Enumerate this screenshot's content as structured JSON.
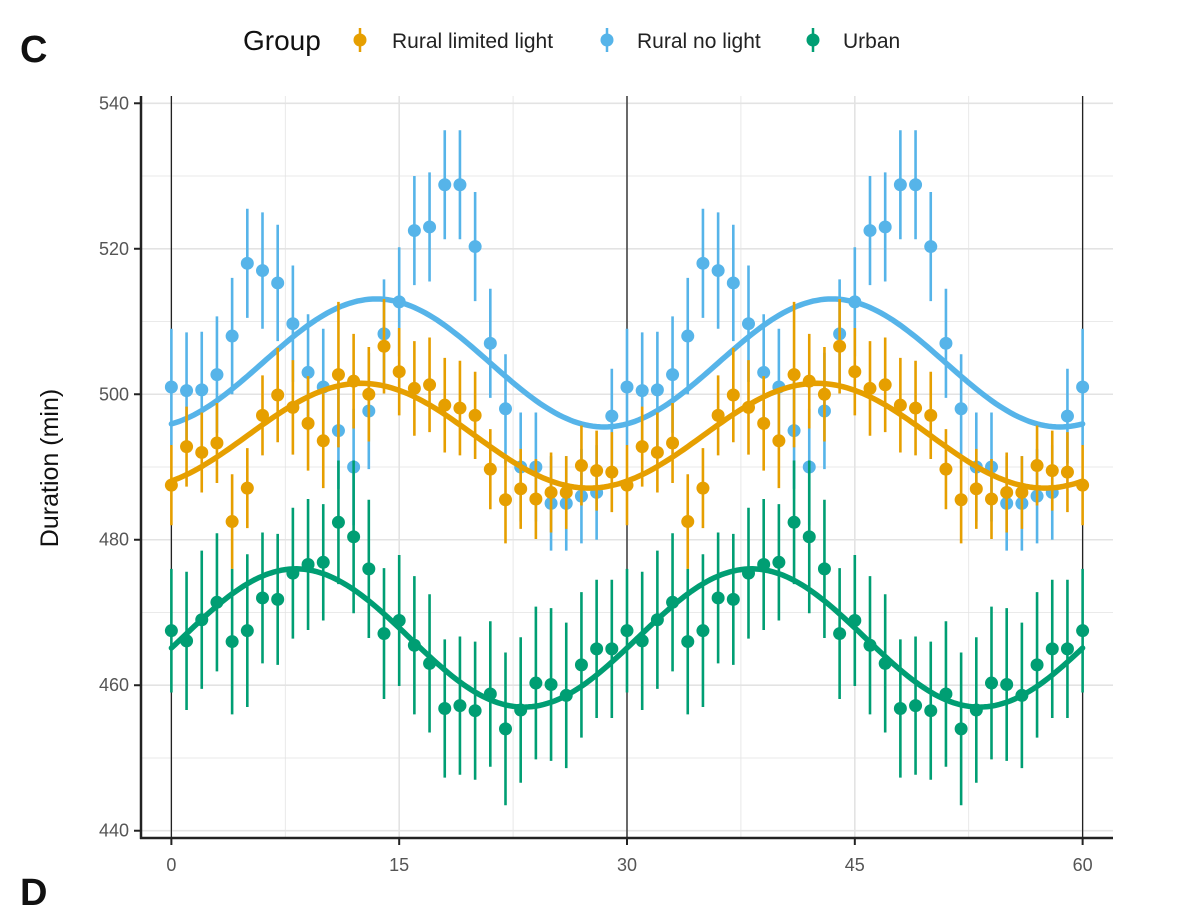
{
  "panels": {
    "top": "C",
    "bottom": "D"
  },
  "colors": {
    "rural_limited_light": "#E69F00",
    "rural_no_light": "#56B4E9",
    "urban": "#009E73",
    "grid": "#e3e3e3",
    "axis": "#222222"
  },
  "chart_data": {
    "type": "scatter",
    "title": "",
    "xlabel": "",
    "ylabel": "Duration (min)",
    "xlim": [
      -2,
      62
    ],
    "ylim": [
      439,
      541
    ],
    "x_ticks": [
      0,
      15,
      30,
      45,
      60
    ],
    "y_ticks": [
      440,
      460,
      480,
      500,
      520,
      540
    ],
    "vertical_reference_lines": [
      0,
      30,
      60
    ],
    "grid": true,
    "error_bars": true,
    "fitted_curves": true,
    "legend": {
      "title": "Group",
      "position": "top"
    },
    "x": [
      0,
      1,
      2,
      3,
      4,
      5,
      6,
      7,
      8,
      9,
      10,
      11,
      12,
      13,
      14,
      15,
      16,
      17,
      18,
      19,
      20,
      21,
      22,
      23,
      24,
      25,
      26,
      27,
      28,
      29,
      30,
      31,
      32,
      33,
      34,
      35,
      36,
      37,
      38,
      39,
      40,
      41,
      42,
      43,
      44,
      45,
      46,
      47,
      48,
      49,
      50,
      51,
      52,
      53,
      54,
      55,
      56,
      57,
      58,
      59,
      60
    ],
    "series": [
      {
        "name": "Rural limited light",
        "y": [
          487.5,
          492.8,
          492.0,
          493.3,
          482.5,
          487.1,
          497.1,
          499.9,
          498.2,
          496.0,
          493.6,
          502.7,
          501.8,
          500.0,
          506.6,
          503.1,
          500.8,
          501.3,
          498.5,
          498.1,
          497.1,
          489.7,
          485.5,
          487.0,
          485.6,
          486.5,
          486.5,
          490.2,
          489.5,
          489.3,
          487.5,
          492.8,
          492.0,
          493.3,
          482.5,
          487.1,
          497.1,
          499.9,
          498.2,
          496.0,
          493.6,
          502.7,
          501.8,
          500.0,
          506.6,
          503.1,
          500.8,
          501.3,
          498.5,
          498.1,
          497.1,
          489.7,
          485.5,
          487.0,
          485.6,
          486.5,
          486.5,
          490.2,
          489.5,
          489.3,
          487.5
        ],
        "err": [
          5.5,
          5.5,
          5.5,
          5.5,
          6.5,
          5.5,
          5.5,
          6.5,
          6.5,
          6.5,
          6.5,
          10.0,
          6.5,
          6.5,
          6.5,
          6.0,
          6.5,
          6.5,
          6.5,
          6.5,
          6.0,
          5.5,
          6.0,
          5.5,
          5.5,
          5.5,
          5.0,
          5.5,
          5.5,
          5.5,
          5.5,
          5.5,
          5.5,
          5.5,
          6.5,
          5.5,
          5.5,
          6.5,
          6.5,
          6.5,
          6.5,
          10.0,
          6.5,
          6.5,
          6.5,
          6.0,
          6.5,
          6.5,
          6.5,
          6.5,
          6.0,
          5.5,
          6.0,
          5.5,
          5.5,
          5.5,
          5.0,
          5.5,
          5.5,
          5.5,
          5.5
        ],
        "fit_mean": 494.3,
        "fit_amplitude": 7.2,
        "fit_peak_x": 12.5
      },
      {
        "name": "Rural no light",
        "y": [
          501.0,
          500.5,
          500.6,
          502.7,
          508.0,
          518.0,
          517.0,
          515.3,
          509.7,
          503.0,
          501.0,
          495.0,
          490.0,
          497.7,
          508.3,
          512.7,
          522.5,
          523.0,
          528.8,
          528.8,
          520.3,
          507.0,
          498.0,
          490.0,
          490.0,
          485.0,
          485.0,
          486.0,
          486.5,
          497.0,
          501.0,
          500.5,
          500.6,
          502.7,
          508.0,
          518.0,
          517.0,
          515.3,
          509.7,
          503.0,
          501.0,
          495.0,
          490.0,
          497.7,
          508.3,
          512.7,
          522.5,
          523.0,
          528.8,
          528.8,
          520.3,
          507.0,
          498.0,
          490.0,
          490.0,
          485.0,
          485.0,
          486.0,
          486.5,
          497.0,
          501.0
        ],
        "err": [
          8.0,
          8.0,
          8.0,
          8.0,
          8.0,
          7.5,
          8.0,
          8.0,
          8.0,
          8.0,
          8.0,
          8.0,
          8.0,
          8.0,
          7.5,
          7.5,
          7.5,
          7.5,
          7.5,
          7.5,
          7.5,
          7.5,
          7.5,
          7.5,
          7.5,
          6.5,
          6.5,
          6.5,
          6.5,
          6.5,
          8.0,
          8.0,
          8.0,
          8.0,
          8.0,
          7.5,
          8.0,
          8.0,
          8.0,
          8.0,
          8.0,
          8.0,
          8.0,
          8.0,
          7.5,
          7.5,
          7.5,
          7.5,
          7.5,
          7.5,
          7.5,
          7.5,
          7.5,
          7.5,
          7.5,
          6.5,
          6.5,
          6.5,
          6.5,
          6.5,
          8.0
        ],
        "fit_mean": 504.3,
        "fit_amplitude": 8.8,
        "fit_peak_x": 13.5
      },
      {
        "name": "Urban",
        "y": [
          467.5,
          466.1,
          469.0,
          471.4,
          466.0,
          467.5,
          472.0,
          471.8,
          475.4,
          476.6,
          476.9,
          482.4,
          480.4,
          476.0,
          467.1,
          468.9,
          465.5,
          463.0,
          456.8,
          457.2,
          456.5,
          458.8,
          454.0,
          456.6,
          460.3,
          460.1,
          458.6,
          462.8,
          465.0,
          465.0,
          467.5,
          466.1,
          469.0,
          471.4,
          466.0,
          467.5,
          472.0,
          471.8,
          475.4,
          476.6,
          476.9,
          482.4,
          480.4,
          476.0,
          467.1,
          468.9,
          465.5,
          463.0,
          456.8,
          457.2,
          456.5,
          458.8,
          454.0,
          456.6,
          460.3,
          460.1,
          458.6,
          462.8,
          465.0,
          465.0,
          467.5
        ],
        "err": [
          8.5,
          9.5,
          9.5,
          9.5,
          10.0,
          10.5,
          9.0,
          9.0,
          9.0,
          9.0,
          8.0,
          8.5,
          10.5,
          9.5,
          9.0,
          9.0,
          9.5,
          9.5,
          9.5,
          9.5,
          9.5,
          10.0,
          10.5,
          10.0,
          10.5,
          10.5,
          10.0,
          10.0,
          9.5,
          9.5,
          8.5,
          9.5,
          9.5,
          9.5,
          10.0,
          10.5,
          9.0,
          9.0,
          9.0,
          9.0,
          8.0,
          8.5,
          10.5,
          9.5,
          9.0,
          9.0,
          9.5,
          9.5,
          9.5,
          9.5,
          9.5,
          10.0,
          10.5,
          10.0,
          10.5,
          10.5,
          10.0,
          10.0,
          9.5,
          9.5,
          8.5
        ],
        "fit_mean": 466.5,
        "fit_amplitude": 9.5,
        "fit_peak_x": 8.2
      }
    ]
  }
}
